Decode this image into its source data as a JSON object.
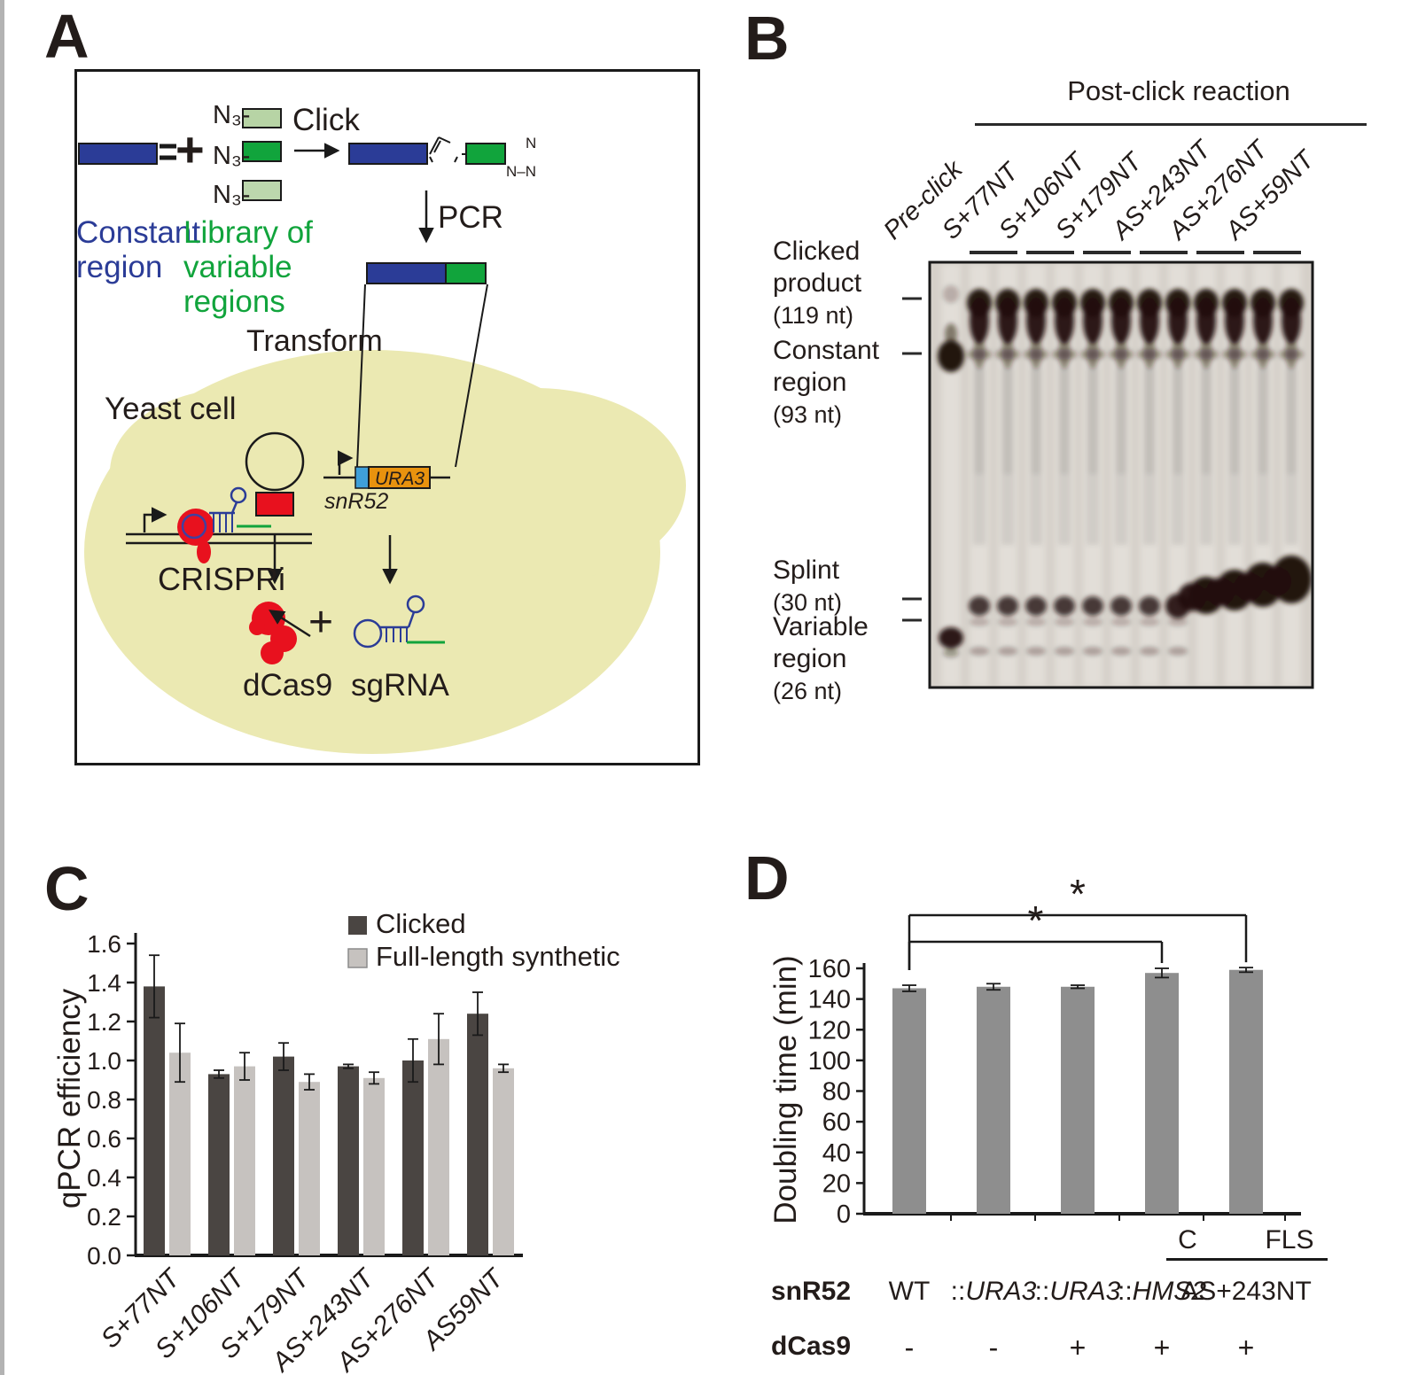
{
  "colors": {
    "blue": "#2b3c97",
    "green": "#11a43c",
    "light_green1": "#b7d4a5",
    "light_green2": "#bcd7ad",
    "red": "#e8111e",
    "orange": "#e8920e",
    "light_blue": "#3f9fd8",
    "yeast": "#ebe9b2",
    "ink": "#1a1a1a",
    "band": "#23120a",
    "gel_bg": "#d5d0c9"
  },
  "panel_a": {
    "letter": "A",
    "n3": "N₃-",
    "plus": "+",
    "plus2": "+",
    "click": "Click",
    "pcr": "PCR",
    "transform": "Transform",
    "constant": "Constant region",
    "library": "Library of variable regions",
    "yeast": "Yeast cell",
    "crispri": "CRISPRi",
    "dcas9": "dCas9",
    "sgrna": "sgRNA",
    "snr52": "snR52",
    "ura3": "URA3",
    "tri_n": "N",
    "tri_nn": "N–N"
  },
  "panel_b": {
    "letter": "B",
    "header": "Post-click reaction",
    "lanes": [
      "Pre-click",
      "S+77NT",
      "S+106NT",
      "S+179NT",
      "AS+243NT",
      "AS+276NT",
      "AS+59NT"
    ],
    "band_labels": [
      {
        "lines": [
          "Clicked",
          "product"
        ],
        "size": "(119 nt)"
      },
      {
        "lines": [
          "Constant",
          "region"
        ],
        "size": "(93 nt)"
      },
      {
        "lines": [
          "Splint"
        ],
        "size": "(30 nt)"
      },
      {
        "lines": [
          "Variable",
          "region"
        ],
        "size": "(26 nt)"
      }
    ],
    "gel": {
      "lane_count": 13,
      "pre_click_lane": 0,
      "clicked_lanes": [
        1,
        2,
        3,
        4,
        5,
        6,
        7,
        8,
        9,
        10,
        11,
        12
      ],
      "splint_small_lanes": [
        1,
        2,
        3,
        4,
        5,
        6,
        7,
        8
      ],
      "splint_heavy_lanes": [
        9,
        10,
        11,
        12
      ],
      "variable_faint_lanes": [
        1,
        2,
        3,
        4,
        5,
        6,
        7,
        8
      ]
    }
  },
  "panel_c": {
    "letter": "C"
  },
  "panel_d": {
    "letter": "D",
    "sub_labels": [
      "C",
      "FLS"
    ],
    "rows": [
      {
        "header": "snR52",
        "cells": [
          {
            "t": "WT"
          },
          {
            "p": "::",
            "i": "URA3"
          },
          {
            "p": "::",
            "i": "URA3"
          },
          {
            "p": "::",
            "i": "HMS2"
          },
          {
            "t": "AS+243NT"
          }
        ]
      },
      {
        "header": "dCas9",
        "cells": [
          {
            "t": "-"
          },
          {
            "t": "-"
          },
          {
            "t": "+"
          },
          {
            "t": "+"
          },
          {
            "t": "+"
          }
        ]
      }
    ]
  },
  "chart_data": [
    {
      "type": "bar",
      "panel": "C",
      "title": "",
      "xlabel": "",
      "ylabel": "qPCR efficiency",
      "ylim": [
        0,
        1.6
      ],
      "ytick_step": 0.2,
      "grid": false,
      "legend_position": "top-right",
      "categories": [
        "S+77NT",
        "S+106NT",
        "S+179NT",
        "AS+243NT",
        "AS+276NT",
        "AS59NT"
      ],
      "series": [
        {
          "name": "Clicked",
          "color": "#4a4542",
          "values": [
            1.38,
            0.93,
            1.02,
            0.97,
            1.0,
            1.24
          ],
          "errors": [
            0.16,
            0.02,
            0.07,
            0.01,
            0.11,
            0.11
          ]
        },
        {
          "name": "Full-length synthetic",
          "color": "#c6c2bf",
          "values": [
            1.04,
            0.97,
            0.89,
            0.91,
            1.11,
            0.96
          ],
          "errors": [
            0.15,
            0.07,
            0.04,
            0.03,
            0.13,
            0.02
          ]
        }
      ]
    },
    {
      "type": "bar",
      "panel": "D",
      "title": "",
      "xlabel": "",
      "ylabel": "Doubling time (min)",
      "ylim": [
        0,
        160
      ],
      "ytick_step": 20,
      "grid": false,
      "categories": [
        "WT",
        "::URA3",
        "::URA3",
        "::HMS2",
        "AS+243NT"
      ],
      "values": [
        147,
        148,
        148,
        157,
        159
      ],
      "errors": [
        2,
        2,
        1,
        3,
        1.5
      ],
      "bar_color": "#8e8e8e",
      "significance": [
        {
          "from": 0,
          "to": 4,
          "label": "*"
        },
        {
          "from": 0,
          "to": 3,
          "label": "*"
        }
      ]
    }
  ]
}
